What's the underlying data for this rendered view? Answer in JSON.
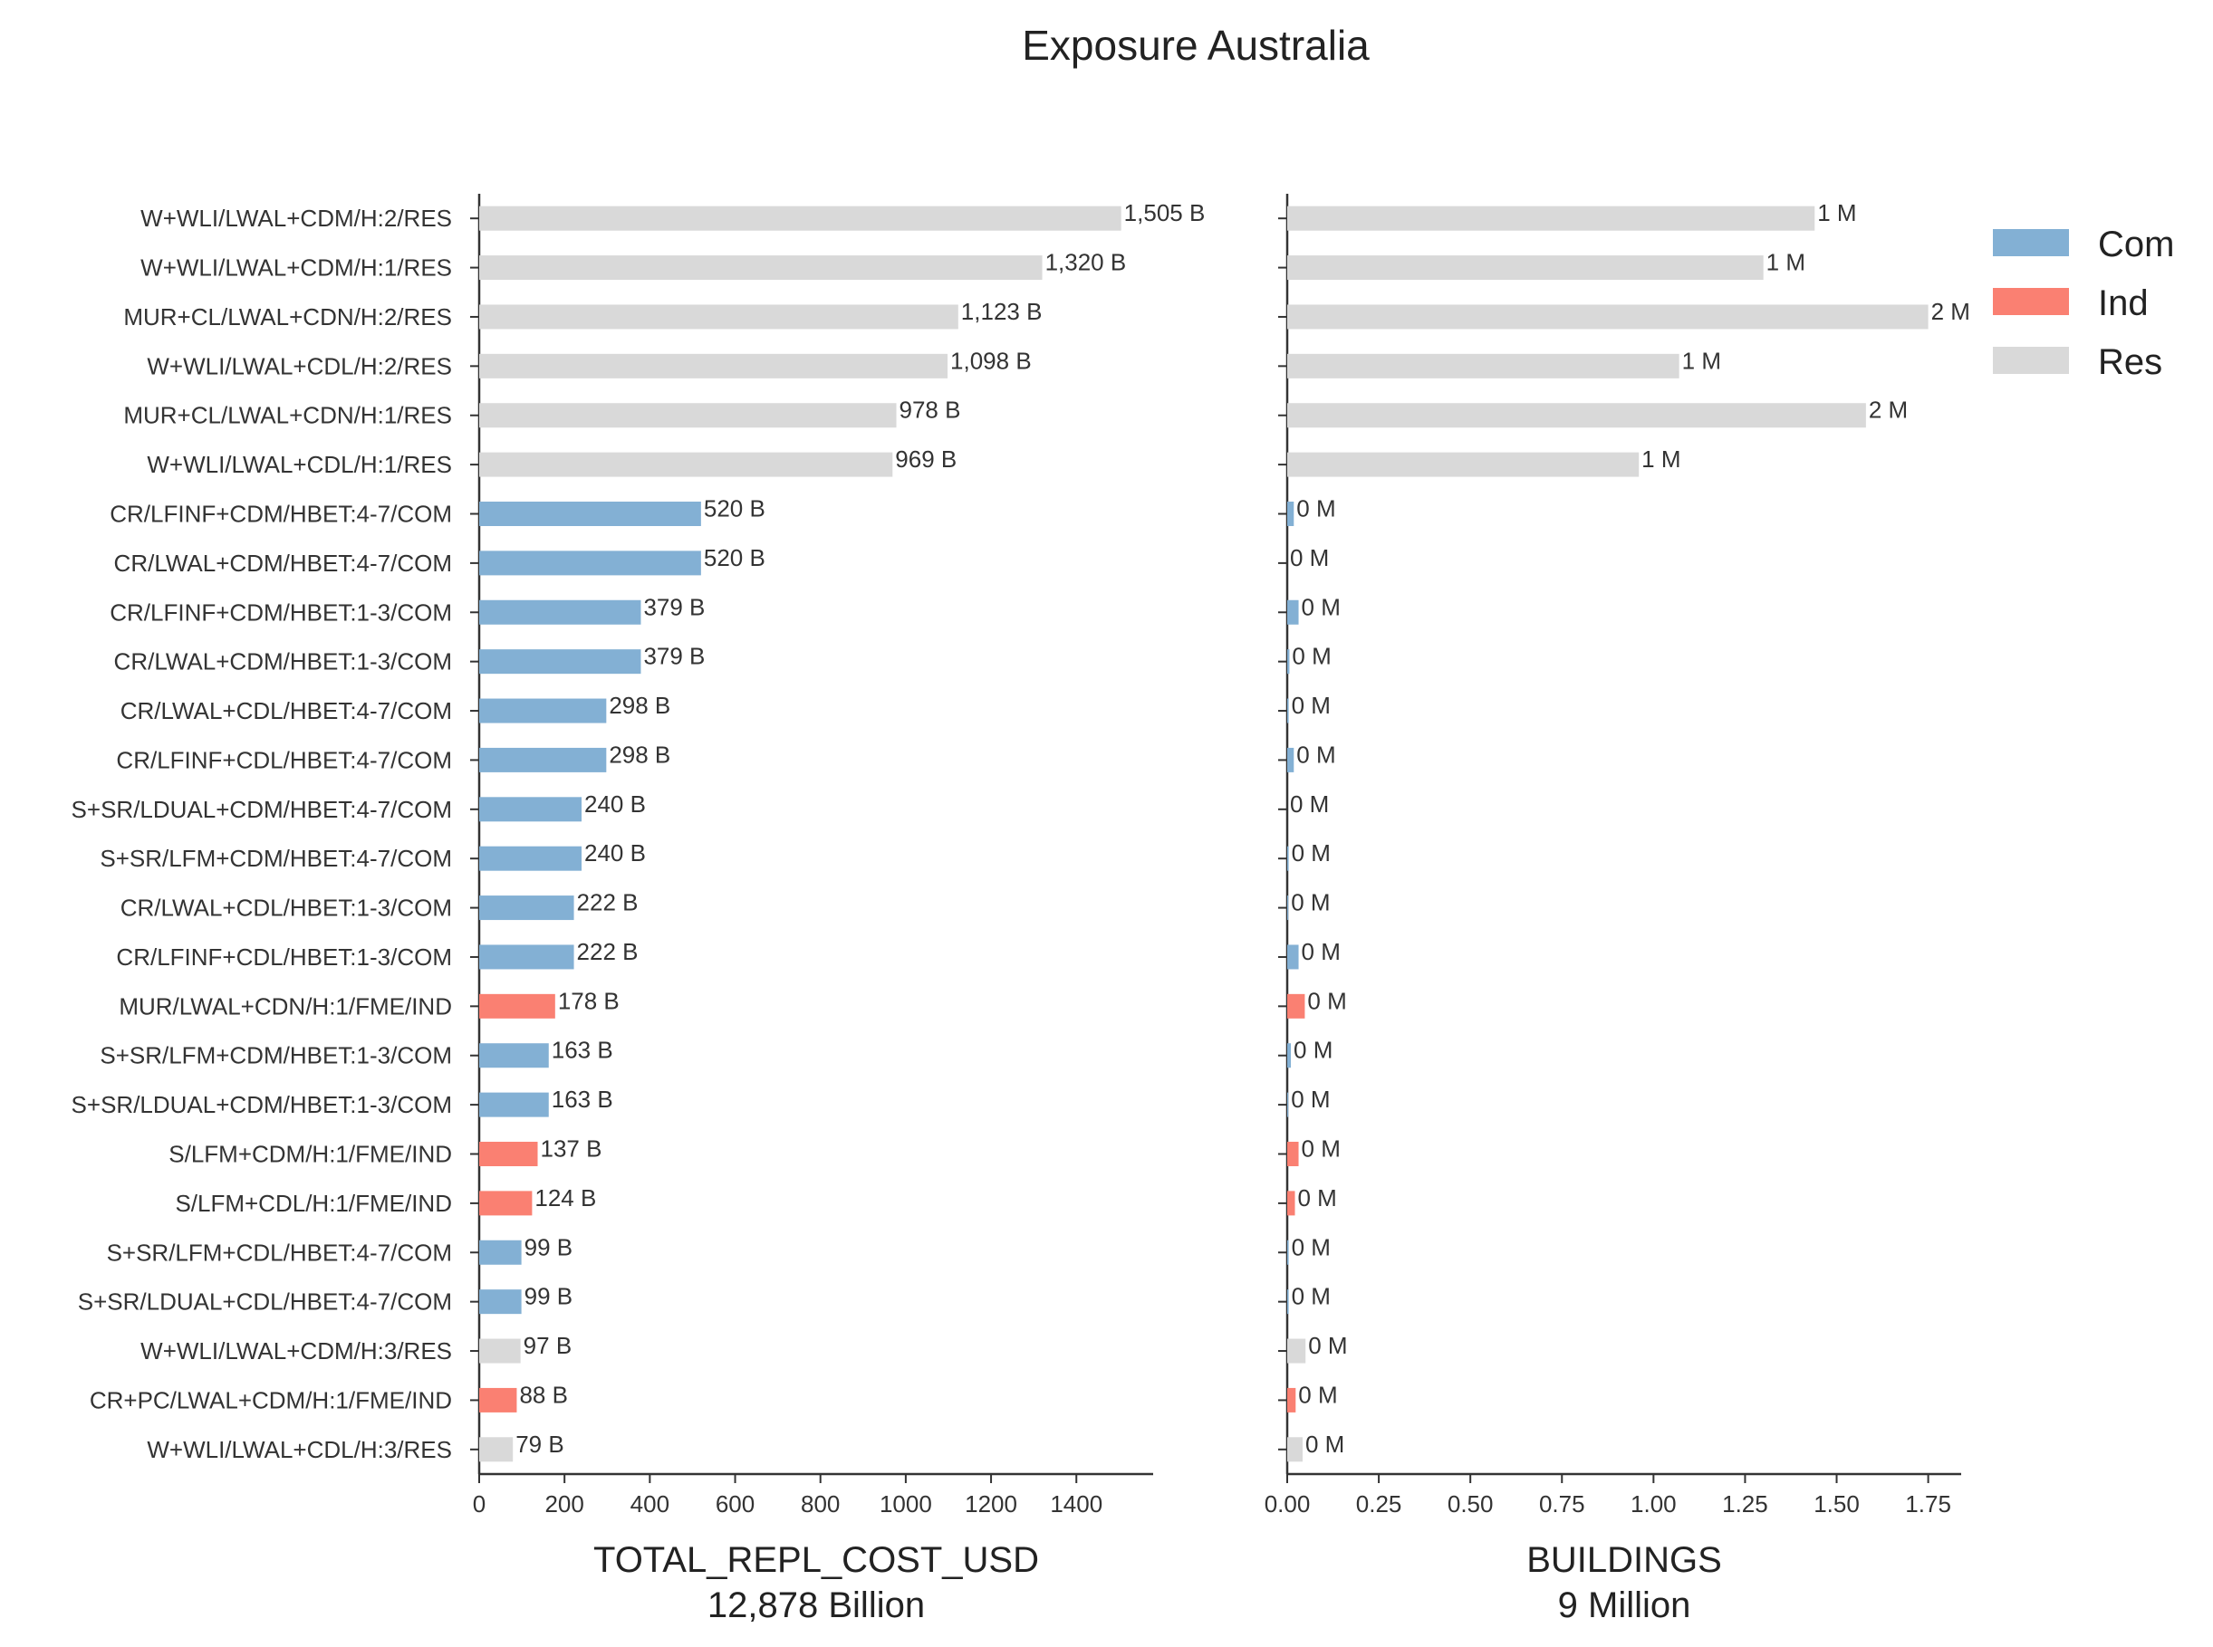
{
  "chart_data": {
    "type": "bar",
    "orientation": "horizontal",
    "title": "Exposure Australia",
    "categories": [
      "W+WLI/LWAL+CDM/H:2/RES",
      "W+WLI/LWAL+CDM/H:1/RES",
      "MUR+CL/LWAL+CDN/H:2/RES",
      "W+WLI/LWAL+CDL/H:2/RES",
      "MUR+CL/LWAL+CDN/H:1/RES",
      "W+WLI/LWAL+CDL/H:1/RES",
      "CR/LFINF+CDM/HBET:4-7/COM",
      "CR/LWAL+CDM/HBET:4-7/COM",
      "CR/LFINF+CDM/HBET:1-3/COM",
      "CR/LWAL+CDM/HBET:1-3/COM",
      "CR/LWAL+CDL/HBET:4-7/COM",
      "CR/LFINF+CDL/HBET:4-7/COM",
      "S+SR/LDUAL+CDM/HBET:4-7/COM",
      "S+SR/LFM+CDM/HBET:4-7/COM",
      "CR/LWAL+CDL/HBET:1-3/COM",
      "CR/LFINF+CDL/HBET:1-3/COM",
      "MUR/LWAL+CDN/H:1/FME/IND",
      "S+SR/LFM+CDM/HBET:1-3/COM",
      "S+SR/LDUAL+CDM/HBET:1-3/COM",
      "S/LFM+CDM/H:1/FME/IND",
      "S/LFM+CDL/H:1/FME/IND",
      "S+SR/LFM+CDL/HBET:4-7/COM",
      "S+SR/LDUAL+CDL/HBET:4-7/COM",
      "W+WLI/LWAL+CDM/H:3/RES",
      "CR+PC/LWAL+CDM/H:1/FME/IND",
      "W+WLI/LWAL+CDL/H:3/RES"
    ],
    "occupancy": [
      "Res",
      "Res",
      "Res",
      "Res",
      "Res",
      "Res",
      "Com",
      "Com",
      "Com",
      "Com",
      "Com",
      "Com",
      "Com",
      "Com",
      "Com",
      "Com",
      "Ind",
      "Com",
      "Com",
      "Ind",
      "Ind",
      "Com",
      "Com",
      "Res",
      "Ind",
      "Res"
    ],
    "legend": {
      "placement": "top-right",
      "entries": [
        {
          "name": "Com",
          "color": "#83b0d4"
        },
        {
          "name": "Ind",
          "color": "#fa8072"
        },
        {
          "name": "Res",
          "color": "#d9d9d9"
        }
      ]
    },
    "panels": [
      {
        "xlabel": "TOTAL_REPL_COST_USD",
        "total_label": "12,878 Billion",
        "xlim": [
          0,
          1580
        ],
        "ticks": [
          0,
          200,
          400,
          600,
          800,
          1000,
          1200,
          1400
        ],
        "tick_labels": [
          "0",
          "200",
          "400",
          "600",
          "800",
          "1000",
          "1200",
          "1400"
        ],
        "values": [
          1505,
          1320,
          1123,
          1098,
          978,
          969,
          520,
          520,
          379,
          379,
          298,
          298,
          240,
          240,
          222,
          222,
          178,
          163,
          163,
          137,
          124,
          99,
          99,
          97,
          88,
          79
        ],
        "value_labels": [
          "1,505 B",
          "1,320 B",
          "1,123 B",
          "1,098 B",
          "978 B",
          "969 B",
          "520 B",
          "520 B",
          "379 B",
          "379 B",
          "298 B",
          "298 B",
          "240 B",
          "240 B",
          "222 B",
          "222 B",
          "178 B",
          "163 B",
          "163 B",
          "137 B",
          "124 B",
          "99 B",
          "99 B",
          "97 B",
          "88 B",
          "79 B"
        ]
      },
      {
        "xlabel": "BUILDINGS",
        "total_label": "9 Million",
        "xlim": [
          0,
          1.84
        ],
        "ticks": [
          0,
          0.25,
          0.5,
          0.75,
          1.0,
          1.25,
          1.5,
          1.75
        ],
        "tick_labels": [
          "0.00",
          "0.25",
          "0.50",
          "0.75",
          "1.00",
          "1.25",
          "1.50",
          "1.75"
        ],
        "values": [
          1.44,
          1.3,
          1.75,
          1.07,
          1.58,
          0.96,
          0.018,
          0.0,
          0.031,
          0.006,
          0.004,
          0.018,
          0.0,
          0.004,
          0.003,
          0.031,
          0.048,
          0.01,
          0.003,
          0.031,
          0.021,
          0.004,
          0.004,
          0.05,
          0.023,
          0.042
        ],
        "value_labels": [
          "1 M",
          "1 M",
          "2 M",
          "1 M",
          "2 M",
          "1 M",
          "0 M",
          "0 M",
          "0 M",
          "0 M",
          "0 M",
          "0 M",
          "0 M",
          "0 M",
          "0 M",
          "0 M",
          "0 M",
          "0 M",
          "0 M",
          "0 M",
          "0 M",
          "0 M",
          "0 M",
          "0 M",
          "0 M",
          "0 M"
        ]
      }
    ]
  }
}
